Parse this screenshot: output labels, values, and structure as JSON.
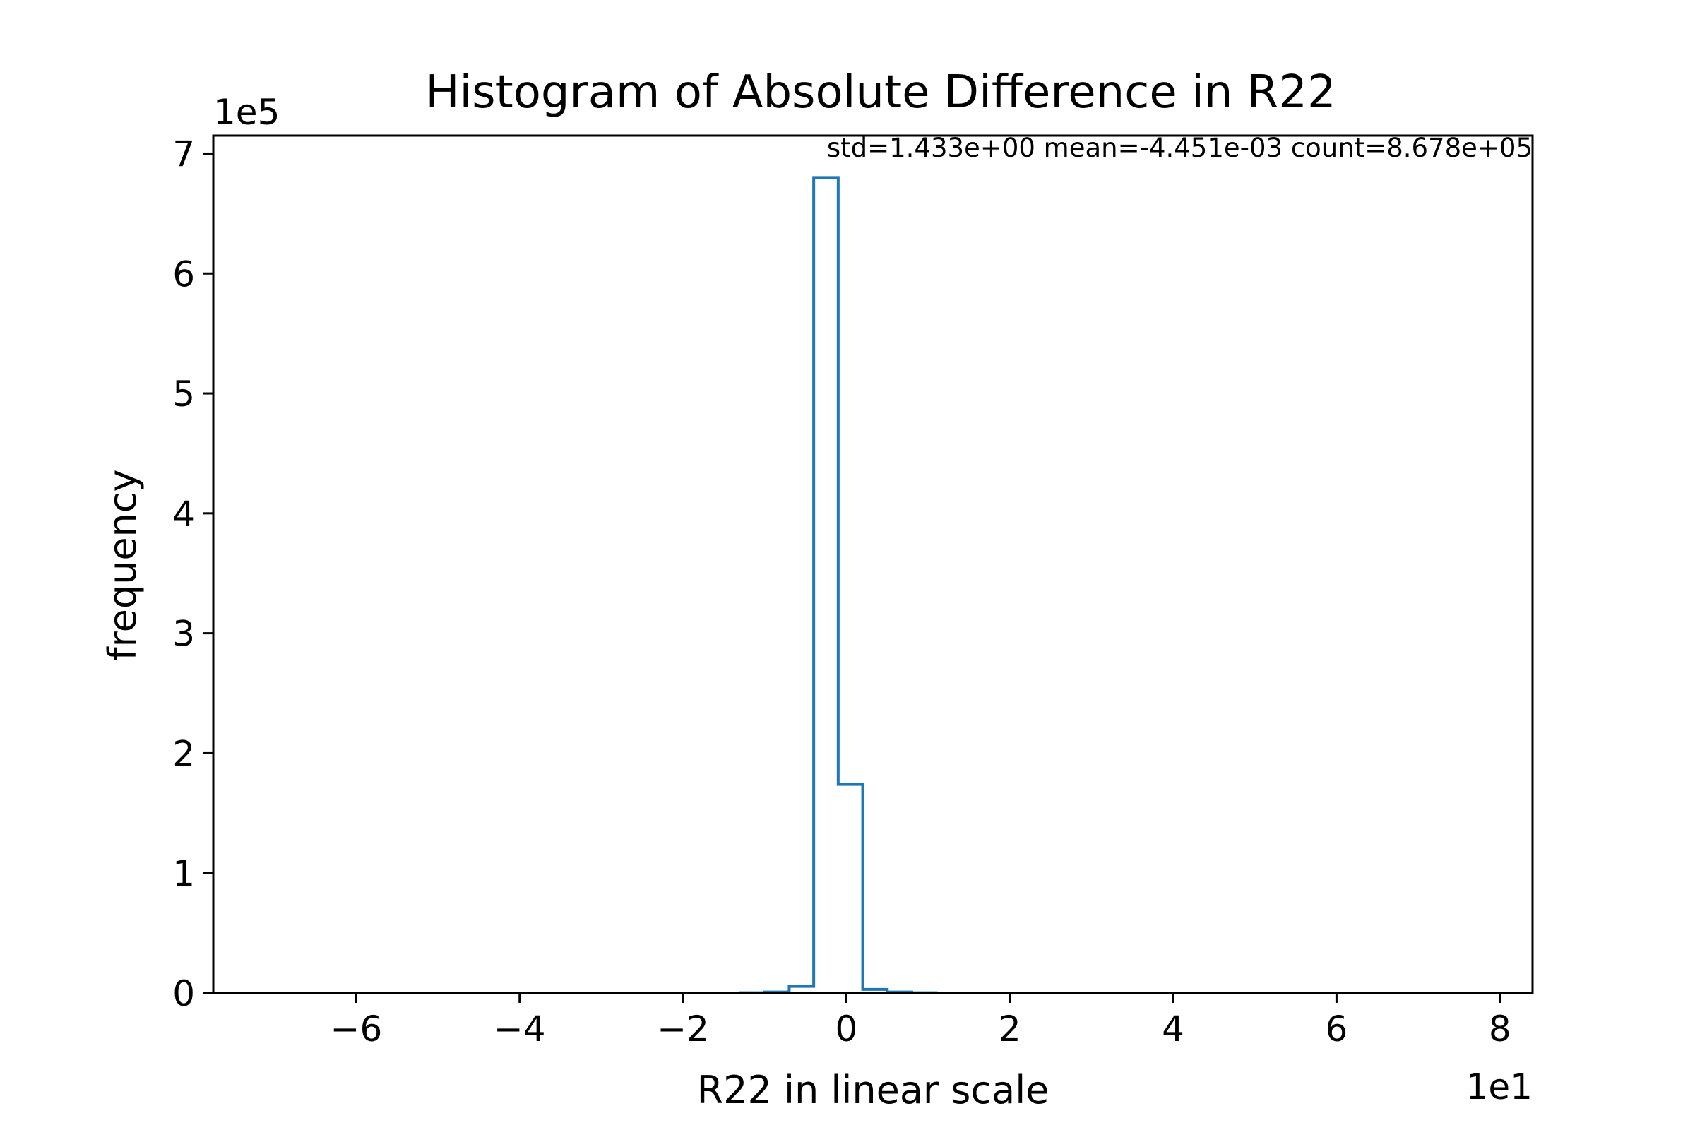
{
  "chart_data": {
    "type": "bar",
    "title": "Histogram of Absolute Difference in R22",
    "xlabel": "R22 in linear scale",
    "ylabel": "frequency",
    "x_offset_text": "1e1",
    "y_offset_text": "1e5",
    "annotation": "std=1.433e+00 mean=-4.451e-03 count=8.678e+05",
    "xlim": [
      -7.75,
      8.4
    ],
    "ylim": [
      0,
      7.15
    ],
    "x_ticks": [
      -6,
      -4,
      -2,
      0,
      2,
      4,
      6,
      8
    ],
    "x_tick_labels": [
      "−6",
      "−4",
      "−2",
      "0",
      "2",
      "4",
      "6",
      "8"
    ],
    "y_ticks": [
      0,
      1,
      2,
      3,
      4,
      5,
      6,
      7
    ],
    "y_tick_labels": [
      "0",
      "1",
      "2",
      "3",
      "4",
      "5",
      "6",
      "7"
    ],
    "histtype": "step",
    "bin_edges": [
      -7.0,
      -6.7,
      -6.4,
      -6.1,
      -5.8,
      -5.5,
      -5.2,
      -4.9,
      -4.6,
      -4.3,
      -4.0,
      -3.7,
      -3.4,
      -3.1,
      -2.8,
      -2.5,
      -2.2,
      -1.9,
      -1.6,
      -1.3,
      -1.0,
      -0.7,
      -0.4,
      -0.1,
      0.2,
      0.5,
      0.8,
      1.1,
      1.4,
      1.7,
      2.0,
      2.3,
      2.6,
      2.9,
      3.2,
      3.5,
      3.8,
      4.1,
      4.4,
      4.7,
      5.0,
      5.3,
      5.6,
      5.9,
      6.2,
      6.5,
      6.8,
      7.1,
      7.4,
      7.7
    ],
    "counts": [
      0,
      0,
      0,
      0,
      0,
      0,
      0,
      0,
      0,
      0,
      0,
      0,
      0,
      0,
      0,
      0,
      0,
      0,
      0,
      0.002,
      0.008,
      0.055,
      6.8,
      1.74,
      0.03,
      0.008,
      0.002,
      0,
      0,
      0,
      0,
      0,
      0,
      0,
      0,
      0,
      0,
      0,
      0,
      0,
      0,
      0,
      0,
      0,
      0,
      0,
      0,
      0,
      0
    ],
    "line_color": "#1f77b4",
    "grid": false
  }
}
